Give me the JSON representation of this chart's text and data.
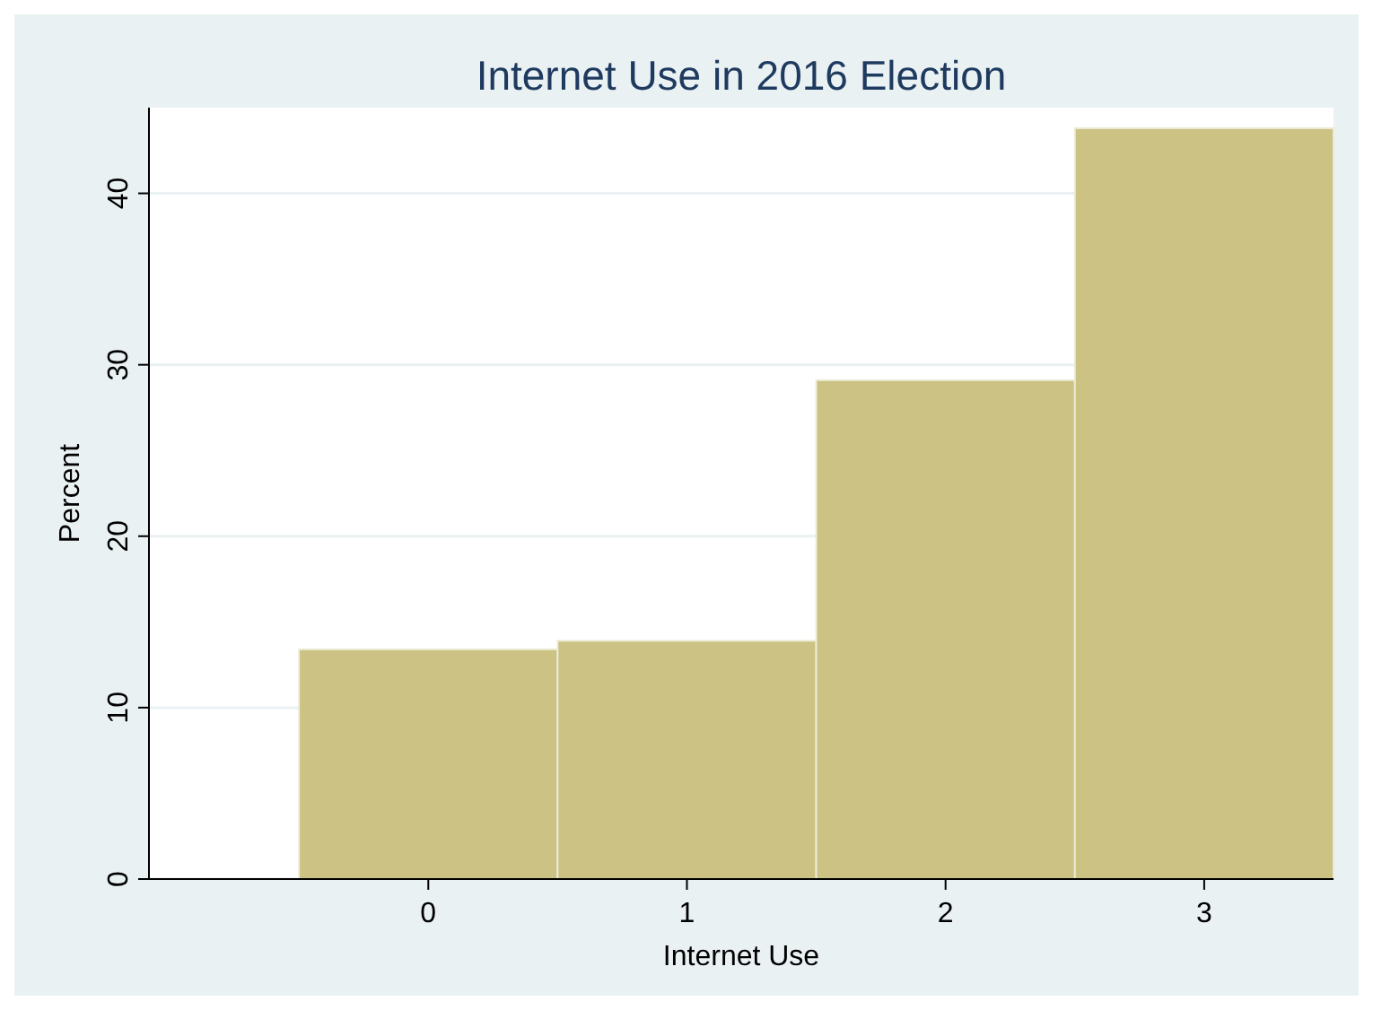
{
  "chart_data": {
    "type": "histogram",
    "title": "Internet Use in 2016 Election",
    "xlabel": "Internet Use",
    "ylabel": "Percent",
    "bins": [
      -0.5,
      0.5,
      1.5,
      2.5,
      3.5
    ],
    "values": [
      13.4,
      13.9,
      29.1,
      43.8
    ],
    "color": "#cbc283",
    "xlim": [
      -1.08,
      3.5
    ],
    "xticks": [
      0,
      1,
      2,
      3
    ],
    "ylim": [
      0,
      45
    ],
    "yticks": [
      0,
      10,
      20,
      30,
      40
    ],
    "grid": "y"
  }
}
